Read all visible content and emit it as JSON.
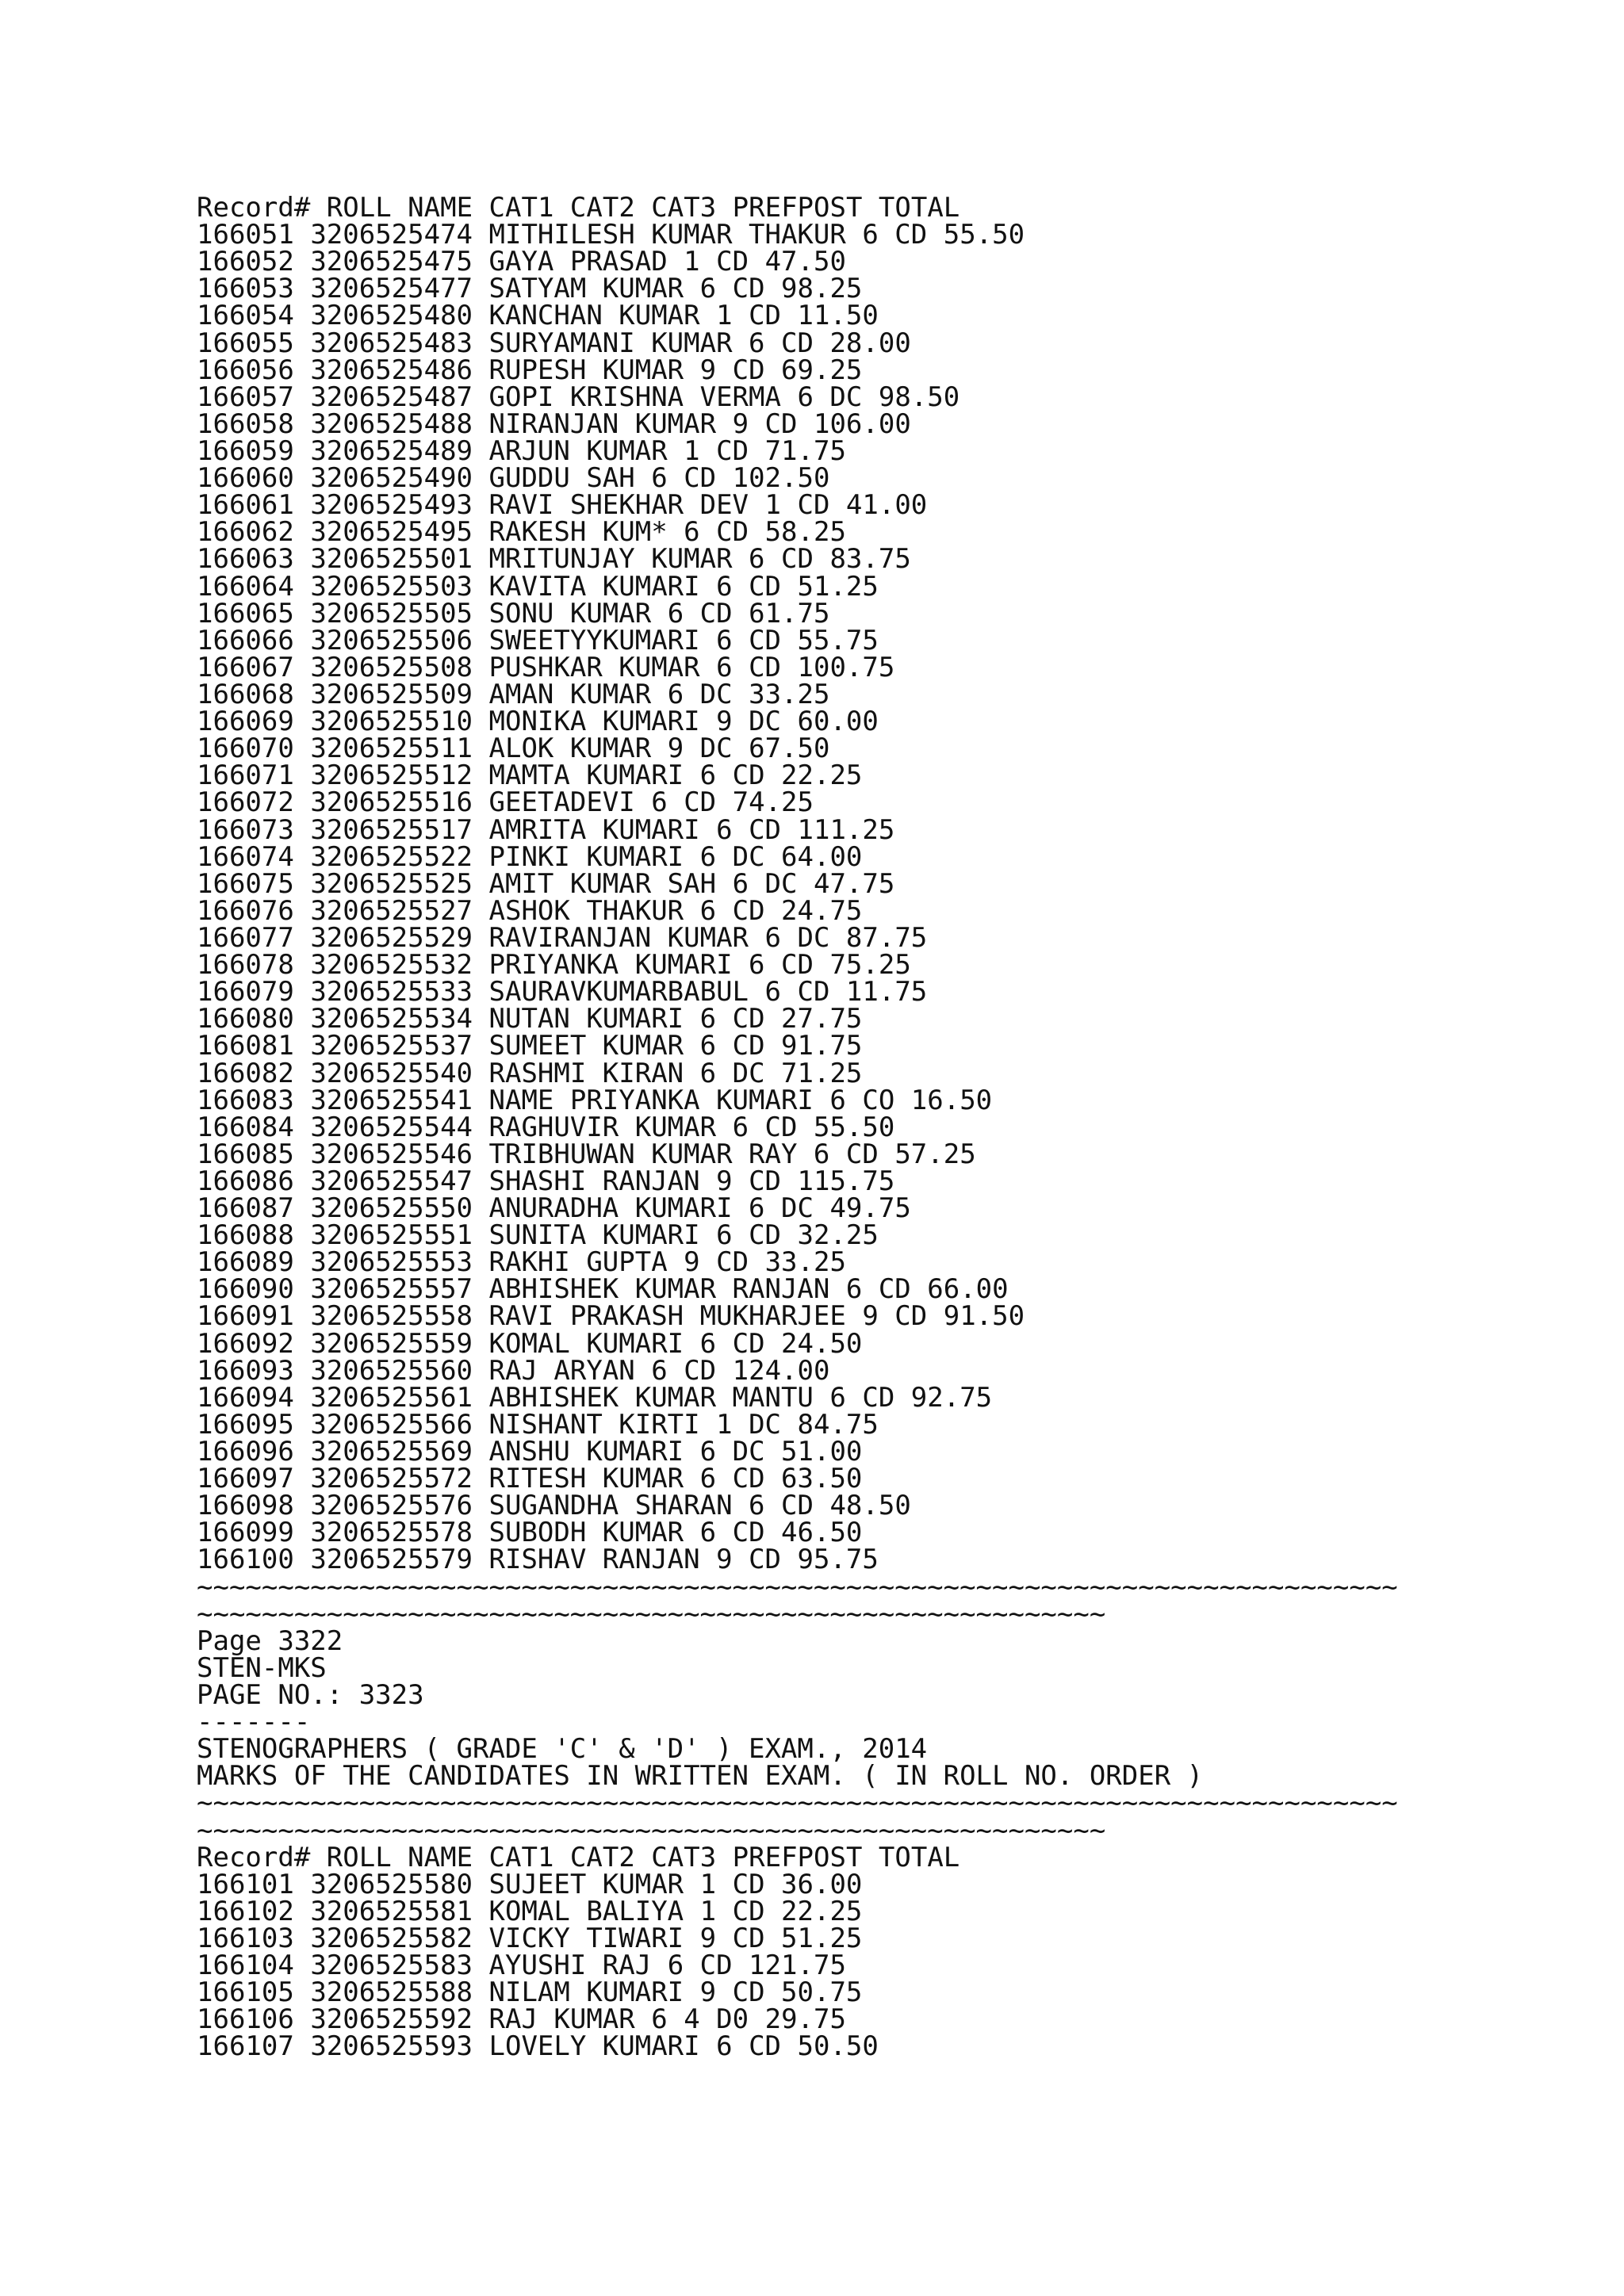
{
  "section1": {
    "header": [
      "Record#",
      "ROLL",
      "NAME",
      "CAT1",
      "CAT2",
      "CAT3",
      "PREFPOST",
      "TOTAL"
    ],
    "rows": [
      [
        "166051",
        "3206525474",
        "MITHILESH KUMAR THAKUR",
        "6",
        "CD",
        "55.50"
      ],
      [
        "166052",
        "3206525475",
        "GAYA PRASAD",
        "1",
        "CD",
        "47.50"
      ],
      [
        "166053",
        "3206525477",
        "SATYAM KUMAR",
        "6",
        "CD",
        "98.25"
      ],
      [
        "166054",
        "3206525480",
        "KANCHAN KUMAR",
        "1",
        "CD",
        "11.50"
      ],
      [
        "166055",
        "3206525483",
        "SURYAMANI KUMAR",
        "6",
        "CD",
        "28.00"
      ],
      [
        "166056",
        "3206525486",
        "RUPESH KUMAR",
        "9",
        "CD",
        "69.25"
      ],
      [
        "166057",
        "3206525487",
        "GOPI KRISHNA VERMA",
        "6",
        "DC",
        "98.50"
      ],
      [
        "166058",
        "3206525488",
        "NIRANJAN KUMAR",
        "9",
        "CD",
        "106.00"
      ],
      [
        "166059",
        "3206525489",
        "ARJUN KUMAR",
        "1",
        "CD",
        "71.75"
      ],
      [
        "166060",
        "3206525490",
        "GUDDU SAH",
        "6",
        "CD",
        "102.50"
      ],
      [
        "166061",
        "3206525493",
        "RAVI SHEKHAR DEV",
        "1",
        "CD",
        "41.00"
      ],
      [
        "166062",
        "3206525495",
        "RAKESH KUM*",
        "6",
        "CD",
        "58.25"
      ],
      [
        "166063",
        "3206525501",
        "MRITUNJAY KUMAR",
        "6",
        "CD",
        "83.75"
      ],
      [
        "166064",
        "3206525503",
        "KAVITA KUMARI",
        "6",
        "CD",
        "51.25"
      ],
      [
        "166065",
        "3206525505",
        "SONU KUMAR",
        "6",
        "CD",
        "61.75"
      ],
      [
        "166066",
        "3206525506",
        "SWEETYYKUMARI",
        "6",
        "CD",
        "55.75"
      ],
      [
        "166067",
        "3206525508",
        "PUSHKAR KUMAR",
        "6",
        "CD",
        "100.75"
      ],
      [
        "166068",
        "3206525509",
        "AMAN KUMAR",
        "6",
        "DC",
        "33.25"
      ],
      [
        "166069",
        "3206525510",
        "MONIKA KUMARI",
        "9",
        "DC",
        "60.00"
      ],
      [
        "166070",
        "3206525511",
        "ALOK KUMAR",
        "9",
        "DC",
        "67.50"
      ],
      [
        "166071",
        "3206525512",
        "MAMTA KUMARI",
        "6",
        "CD",
        "22.25"
      ],
      [
        "166072",
        "3206525516",
        "GEETADEVI",
        "6",
        "CD",
        "74.25"
      ],
      [
        "166073",
        "3206525517",
        "AMRITA KUMARI",
        "6",
        "CD",
        "111.25"
      ],
      [
        "166074",
        "3206525522",
        "PINKI KUMARI",
        "6",
        "DC",
        "64.00"
      ],
      [
        "166075",
        "3206525525",
        "AMIT KUMAR SAH",
        "6",
        "DC",
        "47.75"
      ],
      [
        "166076",
        "3206525527",
        "ASHOK THAKUR",
        "6",
        "CD",
        "24.75"
      ],
      [
        "166077",
        "3206525529",
        "RAVIRANJAN KUMAR",
        "6",
        "DC",
        "87.75"
      ],
      [
        "166078",
        "3206525532",
        "PRIYANKA KUMARI",
        "6",
        "CD",
        "75.25"
      ],
      [
        "166079",
        "3206525533",
        "SAURAVKUMARBABUL",
        "6",
        "CD",
        "11.75"
      ],
      [
        "166080",
        "3206525534",
        "NUTAN KUMARI",
        "6",
        "CD",
        "27.75"
      ],
      [
        "166081",
        "3206525537",
        "SUMEET KUMAR",
        "6",
        "CD",
        "91.75"
      ],
      [
        "166082",
        "3206525540",
        "RASHMI KIRAN",
        "6",
        "DC",
        "71.25"
      ],
      [
        "166083",
        "3206525541",
        "NAME PRIYANKA KUMARI",
        "6",
        "CO",
        "16.50"
      ],
      [
        "166084",
        "3206525544",
        "RAGHUVIR KUMAR",
        "6",
        "CD",
        "55.50"
      ],
      [
        "166085",
        "3206525546",
        "TRIBHUWAN KUMAR RAY",
        "6",
        "CD",
        "57.25"
      ],
      [
        "166086",
        "3206525547",
        "SHASHI RANJAN",
        "9",
        "CD",
        "115.75"
      ],
      [
        "166087",
        "3206525550",
        "ANURADHA KUMARI",
        "6",
        "DC",
        "49.75"
      ],
      [
        "166088",
        "3206525551",
        "SUNITA KUMARI",
        "6",
        "CD",
        "32.25"
      ],
      [
        "166089",
        "3206525553",
        "RAKHI GUPTA",
        "9",
        "CD",
        "33.25"
      ],
      [
        "166090",
        "3206525557",
        "ABHISHEK KUMAR RANJAN",
        "6",
        "CD",
        "66.00"
      ],
      [
        "166091",
        "3206525558",
        "RAVI PRAKASH MUKHARJEE",
        "9",
        "CD",
        "91.50"
      ],
      [
        "166092",
        "3206525559",
        "KOMAL KUMARI",
        "6",
        "CD",
        "24.50"
      ],
      [
        "166093",
        "3206525560",
        "RAJ ARYAN",
        "6",
        "CD",
        "124.00"
      ],
      [
        "166094",
        "3206525561",
        "ABHISHEK KUMAR MANTU",
        "6",
        "CD",
        "92.75"
      ],
      [
        "166095",
        "3206525566",
        "NISHANT KIRTI",
        "1",
        "DC",
        "84.75"
      ],
      [
        "166096",
        "3206525569",
        "ANSHU KUMARI",
        "6",
        "DC",
        "51.00"
      ],
      [
        "166097",
        "3206525572",
        "RITESH KUMAR",
        "6",
        "CD",
        "63.50"
      ],
      [
        "166098",
        "3206525576",
        "SUGANDHA SHARAN",
        "6",
        "CD",
        "48.50"
      ],
      [
        "166099",
        "3206525578",
        "SUBODH KUMAR",
        "6",
        "CD",
        "46.50"
      ],
      [
        "166100",
        "3206525579",
        "RISHAV RANJAN",
        "9",
        "CD",
        "95.75"
      ]
    ]
  },
  "separator_long": "~~~~~~~~~~~~~~~~~~~~~~~~~~~~~~~~~~~~~~~~~~~~~~~~~~~~~~~~~~~~~~~~~~~~~~~~~~",
  "separator_short": "~~~~~~~~~~~~~~~~~~~~~~~~~~~~~~~~~~~~~~~~~~~~~~~~~~~~~~~~",
  "page_break": {
    "page_label": "Page 3322",
    "code": "STEN-MKS",
    "page_no": "PAGE NO.: 3323",
    "dashes": "-------",
    "title": "STENOGRAPHERS ( GRADE 'C' & 'D' ) EXAM., 2014",
    "subtitle": "MARKS OF THE CANDIDATES IN WRITTEN EXAM. ( IN ROLL NO. ORDER )"
  },
  "section2": {
    "header": [
      "Record#",
      "ROLL",
      "NAME",
      "CAT1",
      "CAT2",
      "CAT3",
      "PREFPOST",
      "TOTAL"
    ],
    "rows": [
      [
        "166101",
        "3206525580",
        "SUJEET KUMAR",
        "1",
        "CD",
        "36.00"
      ],
      [
        "166102",
        "3206525581",
        "KOMAL BALIYA",
        "1",
        "CD",
        "22.25"
      ],
      [
        "166103",
        "3206525582",
        "VICKY TIWARI",
        "9",
        "CD",
        "51.25"
      ],
      [
        "166104",
        "3206525583",
        "AYUSHI RAJ",
        "6",
        "CD",
        "121.75"
      ],
      [
        "166105",
        "3206525588",
        "NILAM KUMARI",
        "9",
        "CD",
        "50.75"
      ],
      [
        "166106",
        "3206525592",
        "RAJ KUMAR",
        "6",
        "4",
        "D0",
        "29.75"
      ],
      [
        "166107",
        "3206525593",
        "LOVELY KUMARI",
        "6",
        "CD",
        "50.50"
      ]
    ]
  }
}
